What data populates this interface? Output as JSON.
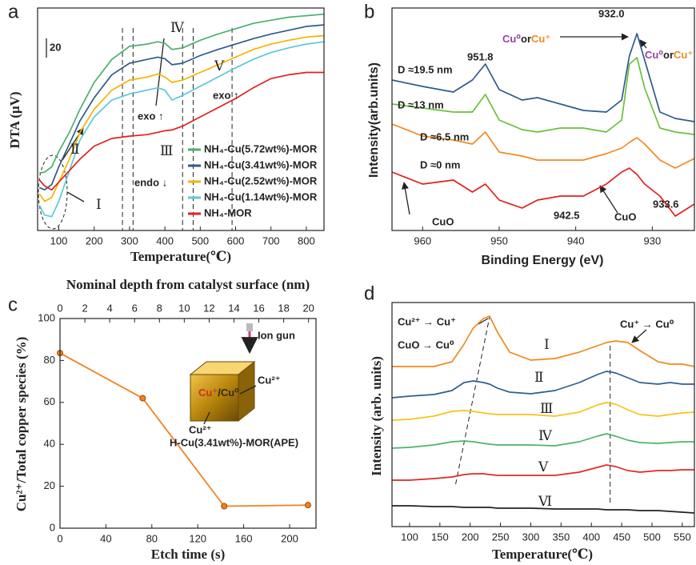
{
  "chart_data": [
    {
      "type": "line",
      "panel_label": "a",
      "xlabel": "Temperature(℃)",
      "ylabel": "DTA (μV)",
      "xlim": [
        40,
        850
      ],
      "ylim": [
        0,
        290
      ],
      "xticks": [
        100,
        200,
        300,
        400,
        500,
        600,
        700,
        800
      ],
      "x": [
        45,
        60,
        80,
        100,
        130,
        160,
        200,
        250,
        300,
        350,
        380,
        400,
        420,
        450,
        500,
        550,
        600,
        650,
        700,
        750,
        800,
        850
      ],
      "series": [
        {
          "name": "NH₄-Cu(5.72wt%)-MOR",
          "color": "#4caf6e",
          "values": [
            75,
            76,
            83,
            103,
            128,
            158,
            193,
            223,
            240,
            243,
            246,
            244,
            236,
            238,
            248,
            256,
            263,
            270,
            274,
            278,
            280,
            282
          ]
        },
        {
          "name": "NH₄-Cu(3.41wt%)-MOR",
          "color": "#2e5c8a",
          "values": [
            56,
            53,
            60,
            83,
            113,
            143,
            173,
            203,
            218,
            223,
            226,
            224,
            216,
            218,
            228,
            236,
            243,
            250,
            256,
            261,
            266,
            268
          ]
        },
        {
          "name": "NH₄-Cu(2.52wt%)-MOR",
          "color": "#f5b301",
          "values": [
            48,
            38,
            43,
            63,
            93,
            128,
            158,
            183,
            196,
            200,
            204,
            200,
            193,
            196,
            206,
            216,
            226,
            236,
            243,
            248,
            252,
            254
          ]
        },
        {
          "name": "NH₄-Cu(1.14wt%)-MOR",
          "color": "#5bc8d8",
          "values": [
            33,
            20,
            18,
            38,
            78,
            118,
            148,
            170,
            178,
            183,
            186,
            183,
            170,
            176,
            188,
            200,
            212,
            223,
            232,
            238,
            243,
            246
          ]
        },
        {
          "name": "NH₄-MOR",
          "color": "#e02020",
          "values": [
            66,
            58,
            53,
            63,
            78,
            93,
            110,
            120,
            123,
            125,
            128,
            130,
            131,
            136,
            148,
            160,
            172,
            186,
            198,
            203,
            206,
            206
          ]
        }
      ],
      "vlines": [
        280,
        310,
        450,
        480,
        590
      ],
      "annotations": [
        "Ⅱ",
        "Ⅳ",
        "Ⅴ",
        "exo ↑",
        "exo ↑",
        "Ⅲ",
        "endo ↓",
        "Ⅰ",
        "20"
      ]
    },
    {
      "type": "line",
      "panel_label": "b",
      "xlabel": "Binding Energy (eV)",
      "ylabel": "Intensity(arb.units)",
      "xlim": [
        964,
        924.5
      ],
      "ylim": [
        0,
        278
      ],
      "xticks": [
        960,
        950,
        940,
        930
      ],
      "x": [
        964,
        960,
        956,
        953.5,
        951.8,
        950,
        947,
        945,
        942,
        939,
        936,
        934,
        933,
        932,
        931,
        929,
        927,
        924.5
      ],
      "series": [
        {
          "name": "D ≈19.5 nm",
          "color": "#2f5b8c",
          "values": [
            188,
            180,
            173,
            188,
            208,
            176,
            163,
            166,
            158,
            150,
            148,
            163,
            218,
            246,
            213,
            148,
            140,
            136
          ]
        },
        {
          "name": "D ≈13 nm",
          "color": "#6cbf3f",
          "values": [
            158,
            153,
            148,
            148,
            170,
            138,
            126,
            123,
            128,
            128,
            123,
            138,
            208,
            216,
            178,
            128,
            123,
            120
          ]
        },
        {
          "name": "D ≈6.5 nm",
          "color": "#f08a24",
          "values": [
            133,
            118,
            113,
            108,
            123,
            98,
            93,
            88,
            88,
            88,
            96,
            103,
            110,
            116,
            108,
            88,
            78,
            90
          ]
        },
        {
          "name": "D ≈0 nm",
          "color": "#e0201e",
          "values": [
            73,
            58,
            63,
            48,
            58,
            38,
            28,
            38,
            43,
            43,
            58,
            73,
            78,
            70,
            58,
            43,
            18,
            33
          ]
        }
      ],
      "annotations": [
        {
          "text": "951.8",
          "color": "#222222"
        },
        {
          "text": "932.0",
          "color": "#222222"
        },
        {
          "parts": [
            {
              "text": "Cu⁰",
              "color": "#9b3fa5"
            },
            {
              "text": "or",
              "color": "#222222"
            },
            {
              "text": "Cu⁺",
              "color": "#f08a24"
            }
          ]
        },
        {
          "parts": [
            {
              "text": "Cu⁰",
              "color": "#9b3fa5"
            },
            {
              "text": "or",
              "color": "#222222"
            },
            {
              "text": "Cu⁺",
              "color": "#f08a24"
            }
          ]
        },
        {
          "text": "CuO",
          "color": "#2a6bb0"
        },
        {
          "text": "CuO",
          "color": "#2a6bb0"
        },
        {
          "text": "942.5",
          "color": "#222222"
        },
        {
          "text": "933.6",
          "color": "#222222"
        }
      ]
    },
    {
      "type": "line",
      "panel_label": "c",
      "xlabel": "Etch time (s)",
      "ylabel": "Cu²⁺/Total copper species (%)",
      "x2label": "Nominal depth from catalyst surface (nm)",
      "xlim": [
        0,
        223
      ],
      "ylim": [
        0,
        100
      ],
      "xticks": [
        0,
        40,
        80,
        120,
        160,
        200
      ],
      "yticks": [
        0,
        20,
        40,
        60,
        80,
        100
      ],
      "x2lim": [
        0,
        20.6
      ],
      "x2ticks": [
        0,
        2,
        4,
        6,
        8,
        10,
        12,
        14,
        16,
        18,
        20
      ],
      "x": [
        0,
        72,
        143,
        216
      ],
      "series": [
        {
          "color": "#f0821e",
          "marker": "circle",
          "values": [
            83.5,
            62,
            10.5,
            11
          ]
        }
      ],
      "annotations": [
        {
          "text": "Ion gun",
          "color": "#222222"
        },
        {
          "parts": [
            {
              "text": "Cu⁺",
              "color": "#d0302a"
            },
            {
              "text": "/",
              "color": "#222222"
            },
            {
              "text": "Cu⁰",
              "color": "#3a2a10"
            }
          ]
        },
        {
          "text": "Cu²⁺",
          "color": "#2a6bb0"
        },
        {
          "text": "Cu²⁺",
          "color": "#2a6bb0"
        },
        {
          "text": "H-Cu(3.41wt%)-MOR(APE)",
          "color": "#222222"
        }
      ]
    },
    {
      "type": "line",
      "panel_label": "d",
      "xlabel": "Temperature(℃)",
      "ylabel": "Intensity (arb. units)",
      "xlim": [
        71,
        570
      ],
      "ylim": [
        0,
        280
      ],
      "xticks": [
        100,
        150,
        200,
        250,
        300,
        350,
        400,
        450,
        500,
        550
      ],
      "x": [
        71,
        100,
        140,
        170,
        190,
        205,
        222,
        232,
        245,
        265,
        300,
        340,
        380,
        410,
        425,
        440,
        460,
        480,
        510,
        530,
        550,
        570
      ],
      "series": [
        {
          "name": "Ⅰ",
          "color": "#ef8a1f",
          "values": [
            200,
            200,
            200,
            206,
            228,
            248,
            260,
            263,
            243,
            218,
            208,
            210,
            218,
            226,
            230,
            232,
            230,
            220,
            206,
            203,
            203,
            200
          ]
        },
        {
          "name": "Ⅱ",
          "color": "#2e5f8e",
          "values": [
            161,
            163,
            165,
            170,
            180,
            182,
            180,
            178,
            173,
            168,
            166,
            170,
            180,
            190,
            194,
            192,
            186,
            180,
            178,
            180,
            178,
            178
          ]
        },
        {
          "name": "Ⅲ",
          "color": "#f7c21a",
          "values": [
            133,
            134,
            138,
            144,
            145,
            144,
            142,
            141,
            140,
            140,
            140,
            138,
            143,
            152,
            155,
            153,
            146,
            140,
            138,
            140,
            142,
            143
          ]
        },
        {
          "name": "Ⅳ",
          "color": "#4db36a",
          "values": [
            98,
            99,
            102,
            106,
            107,
            106,
            104,
            103,
            102,
            102,
            102,
            101,
            106,
            113,
            116,
            113,
            108,
            105,
            104,
            105,
            106,
            106
          ]
        },
        {
          "name": "Ⅴ",
          "color": "#e02828",
          "values": [
            58,
            58,
            60,
            62,
            65,
            66,
            66,
            65,
            64,
            64,
            64,
            64,
            68,
            74,
            77,
            75,
            70,
            68,
            70,
            70,
            71,
            71
          ]
        },
        {
          "name": "Ⅵ",
          "color": "#222222",
          "values": [
            26,
            26,
            25,
            25,
            24,
            24,
            24,
            24,
            23,
            23,
            23,
            22,
            22,
            22,
            21,
            21,
            21,
            20,
            20,
            19,
            18,
            17
          ]
        }
      ],
      "guide_lines": [
        [
          176,
          53,
          232,
          262
        ],
        [
          431,
          30,
          431,
          230
        ]
      ],
      "annotations": [
        "Cu²⁺ → Cu⁺",
        "CuO → Cu⁰",
        "Cu⁺ → Cu⁰"
      ]
    }
  ]
}
